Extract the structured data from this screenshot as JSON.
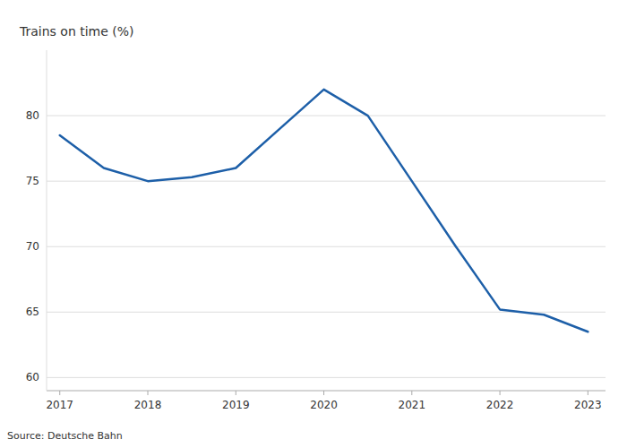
{
  "chart_data": {
    "type": "line",
    "ylabel": "Trains on time (%)",
    "annotations": [
      "Source: Deutsche Bahn"
    ],
    "x": [
      2017,
      2017.5,
      2018,
      2018.5,
      2019,
      2019.5,
      2020,
      2020.5,
      2021,
      2021.5,
      2022,
      2022.5,
      2023
    ],
    "values": [
      78.5,
      76.0,
      75.0,
      75.3,
      76.0,
      79.0,
      82.0,
      80.0,
      75.0,
      70.0,
      65.2,
      64.8,
      63.5
    ],
    "color": "#1d5fa8",
    "xlim": [
      2016.85,
      2023.2
    ],
    "ylim": [
      59,
      85
    ],
    "xticks": [
      2017,
      2018,
      2019,
      2020,
      2021,
      2022,
      2023
    ],
    "yticks": [
      60,
      65,
      70,
      75,
      80
    ],
    "grid": "y"
  }
}
